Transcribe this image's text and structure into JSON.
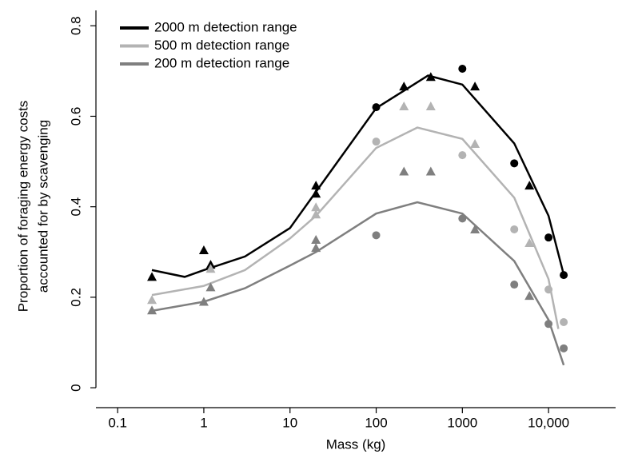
{
  "chart_data": {
    "type": "scatter-fit",
    "xlabel": "Mass (kg)",
    "ylabel": [
      "Proportion of foraging energy costs",
      "accounted for by scavenging"
    ],
    "xscale": "log",
    "xlim": [
      0.056,
      60000
    ],
    "ylim": [
      -0.044,
      0.834
    ],
    "xticks": [
      0.1,
      1,
      10,
      100,
      1000,
      {
        "value": 10000,
        "label": "10,000"
      }
    ],
    "yticks": [
      0,
      0.2,
      0.4,
      0.6,
      0.8
    ],
    "legend": "top-left",
    "series": [
      {
        "name": "2000 m detection range",
        "color": "#000000",
        "x": [
          0.25,
          1,
          1.2,
          20,
          20,
          100,
          210,
          430,
          1000,
          1400,
          4000,
          6000,
          10000,
          15000
        ],
        "values": [
          0.245,
          0.304,
          0.272,
          0.447,
          0.429,
          0.62,
          0.666,
          0.687,
          0.705,
          0.666,
          0.496,
          0.447,
          0.332,
          0.249
        ],
        "markers": [
          "triangle",
          "triangle",
          "triangle",
          "triangle",
          "triangle",
          "circle",
          "triangle",
          "triangle",
          "circle",
          "triangle",
          "circle",
          "triangle",
          "circle",
          "circle"
        ],
        "fit_x": [
          0.25,
          0.6,
          1,
          3,
          10,
          20,
          100,
          400,
          1000,
          4000,
          10000,
          15000
        ],
        "fit_values": [
          0.26,
          0.245,
          0.26,
          0.29,
          0.353,
          0.433,
          0.618,
          0.69,
          0.67,
          0.54,
          0.38,
          0.25
        ]
      },
      {
        "name": "500 m detection range",
        "color": "#b3b3b3",
        "x": [
          0.25,
          1.2,
          20,
          20,
          100,
          210,
          430,
          1000,
          1400,
          4000,
          6000,
          10000,
          15000
        ],
        "values": [
          0.194,
          0.263,
          0.399,
          0.383,
          0.544,
          0.622,
          0.622,
          0.514,
          0.539,
          0.35,
          0.32,
          0.217,
          0.145
        ],
        "markers": [
          "triangle",
          "triangle",
          "triangle",
          "triangle",
          "circle",
          "triangle",
          "triangle",
          "circle",
          "triangle",
          "circle",
          "triangle",
          "circle",
          "circle"
        ],
        "fit_x": [
          0.25,
          1,
          3,
          10,
          20,
          100,
          300,
          1000,
          4000,
          10000,
          13000
        ],
        "fit_values": [
          0.205,
          0.225,
          0.26,
          0.33,
          0.38,
          0.53,
          0.575,
          0.55,
          0.42,
          0.24,
          0.13
        ]
      },
      {
        "name": "200 m detection range",
        "color": "#7f7f7f",
        "x": [
          0.25,
          1,
          1.2,
          20,
          20,
          100,
          210,
          430,
          1000,
          1400,
          4000,
          6000,
          10000,
          15000
        ],
        "values": [
          0.171,
          0.19,
          0.222,
          0.327,
          0.309,
          0.337,
          0.478,
          0.478,
          0.374,
          0.35,
          0.228,
          0.203,
          0.141,
          0.087
        ],
        "markers": [
          "triangle",
          "triangle",
          "triangle",
          "triangle",
          "triangle",
          "circle",
          "triangle",
          "triangle",
          "circle",
          "triangle",
          "circle",
          "triangle",
          "circle",
          "circle"
        ],
        "fit_x": [
          0.25,
          1,
          3,
          10,
          20,
          100,
          300,
          1000,
          4000,
          10000,
          15000
        ],
        "fit_values": [
          0.17,
          0.19,
          0.22,
          0.27,
          0.3,
          0.385,
          0.41,
          0.385,
          0.28,
          0.15,
          0.05
        ]
      }
    ]
  }
}
